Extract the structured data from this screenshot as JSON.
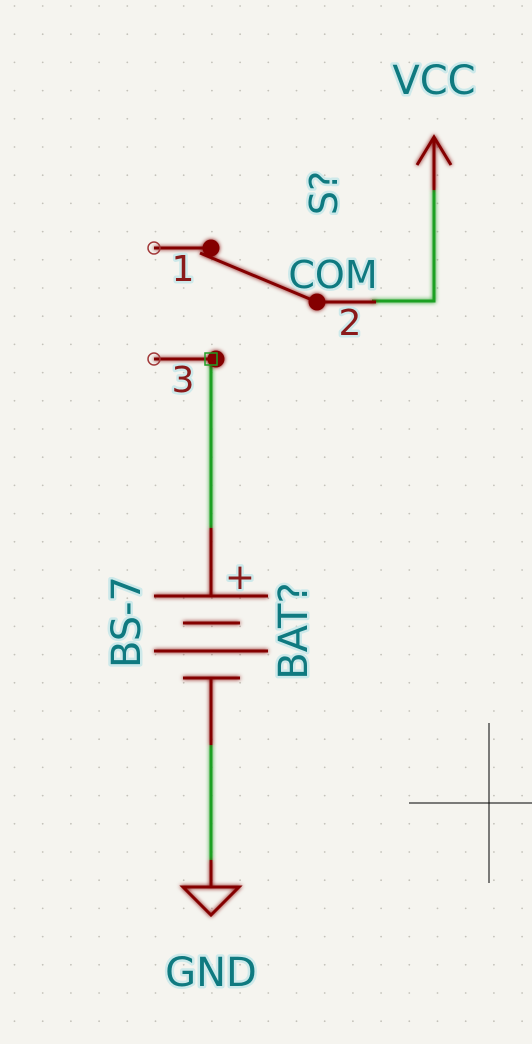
{
  "colors": {
    "background": "#f5f4ef",
    "grid_dot": "#c4c2ba",
    "wire": "#1fa024",
    "symbol_line": "#840000",
    "label_text": "#0f7a80",
    "pin_number": "#8a1a1a",
    "highlight_glow": "#cde9ea",
    "cursor": "#000000"
  },
  "power": {
    "vcc_label": "VCC",
    "gnd_label": "GND"
  },
  "switch": {
    "reference": "S?",
    "common_pin_name": "COM",
    "pin_numbers": [
      "1",
      "2",
      "3"
    ]
  },
  "battery": {
    "reference": "BAT?",
    "value": "BS-7",
    "plus_marker": "+"
  }
}
